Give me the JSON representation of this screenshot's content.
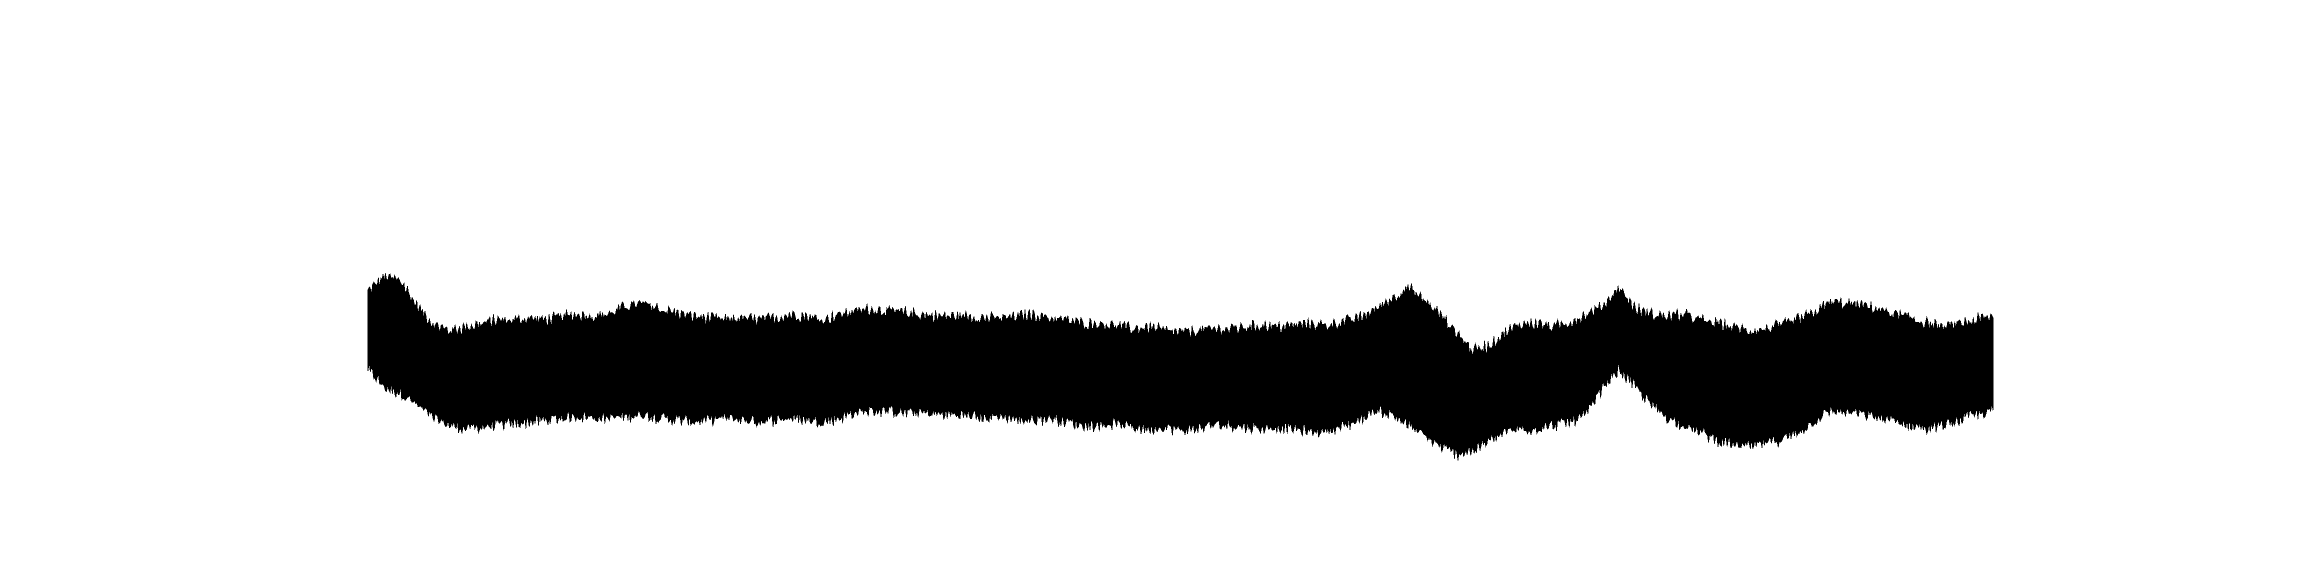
{
  "chart_data": {
    "type": "area",
    "title": "",
    "xlabel": "",
    "ylabel": "",
    "axes_visible": false,
    "grid": false,
    "legend": "none",
    "x_range": [
      0,
      1
    ],
    "y_range": [
      -1,
      1
    ],
    "fill_color": "#000000",
    "background_color": "#ffffff",
    "envelope": {
      "x": [
        0.0,
        0.01,
        0.02,
        0.03,
        0.04,
        0.05,
        0.06,
        0.07,
        0.08,
        0.09,
        0.1,
        0.11,
        0.12,
        0.13,
        0.14,
        0.15,
        0.16,
        0.17,
        0.18,
        0.19,
        0.2,
        0.21,
        0.22,
        0.23,
        0.24,
        0.25,
        0.26,
        0.27,
        0.28,
        0.29,
        0.3,
        0.31,
        0.32,
        0.33,
        0.34,
        0.35,
        0.36,
        0.37,
        0.38,
        0.39,
        0.4,
        0.41,
        0.42,
        0.43,
        0.44,
        0.45,
        0.46,
        0.47,
        0.48,
        0.49,
        0.5,
        0.51,
        0.52,
        0.53,
        0.54,
        0.55,
        0.56,
        0.57,
        0.58,
        0.59,
        0.6,
        0.61,
        0.62,
        0.63,
        0.64,
        0.65,
        0.66,
        0.67,
        0.68,
        0.69,
        0.7,
        0.71,
        0.72,
        0.73,
        0.74,
        0.75,
        0.76,
        0.77,
        0.78,
        0.79,
        0.8,
        0.81,
        0.82,
        0.83,
        0.84,
        0.85,
        0.86,
        0.87,
        0.88,
        0.89,
        0.9,
        0.91,
        0.92,
        0.93,
        0.94,
        0.95,
        0.96,
        0.97,
        0.98,
        0.99,
        1.0
      ],
      "upper": [
        0.38,
        0.46,
        0.44,
        0.3,
        0.2,
        0.16,
        0.18,
        0.2,
        0.22,
        0.22,
        0.23,
        0.22,
        0.24,
        0.25,
        0.24,
        0.26,
        0.3,
        0.31,
        0.28,
        0.26,
        0.24,
        0.23,
        0.22,
        0.23,
        0.22,
        0.23,
        0.25,
        0.24,
        0.22,
        0.25,
        0.27,
        0.28,
        0.27,
        0.26,
        0.25,
        0.24,
        0.24,
        0.24,
        0.23,
        0.23,
        0.24,
        0.25,
        0.23,
        0.22,
        0.2,
        0.2,
        0.19,
        0.17,
        0.18,
        0.16,
        0.15,
        0.16,
        0.17,
        0.17,
        0.18,
        0.19,
        0.18,
        0.19,
        0.2,
        0.19,
        0.21,
        0.23,
        0.28,
        0.34,
        0.4,
        0.33,
        0.25,
        0.15,
        0.05,
        0.08,
        0.15,
        0.2,
        0.2,
        0.18,
        0.21,
        0.25,
        0.3,
        0.4,
        0.28,
        0.25,
        0.24,
        0.25,
        0.22,
        0.2,
        0.18,
        0.16,
        0.17,
        0.19,
        0.22,
        0.26,
        0.32,
        0.31,
        0.3,
        0.28,
        0.25,
        0.23,
        0.2,
        0.18,
        0.2,
        0.22,
        0.24
      ],
      "lower": [
        -0.05,
        -0.15,
        -0.18,
        -0.25,
        -0.32,
        -0.36,
        -0.38,
        -0.37,
        -0.36,
        -0.35,
        -0.34,
        -0.33,
        -0.32,
        -0.31,
        -0.32,
        -0.32,
        -0.31,
        -0.3,
        -0.32,
        -0.33,
        -0.34,
        -0.33,
        -0.32,
        -0.33,
        -0.34,
        -0.33,
        -0.32,
        -0.33,
        -0.34,
        -0.32,
        -0.29,
        -0.28,
        -0.28,
        -0.29,
        -0.29,
        -0.3,
        -0.3,
        -0.31,
        -0.32,
        -0.31,
        -0.33,
        -0.33,
        -0.32,
        -0.34,
        -0.36,
        -0.36,
        -0.35,
        -0.37,
        -0.38,
        -0.37,
        -0.39,
        -0.38,
        -0.36,
        -0.36,
        -0.37,
        -0.38,
        -0.37,
        -0.38,
        -0.4,
        -0.39,
        -0.37,
        -0.33,
        -0.28,
        -0.3,
        -0.36,
        -0.42,
        -0.48,
        -0.52,
        -0.5,
        -0.45,
        -0.4,
        -0.38,
        -0.38,
        -0.36,
        -0.34,
        -0.3,
        -0.15,
        -0.05,
        -0.15,
        -0.25,
        -0.32,
        -0.36,
        -0.4,
        -0.44,
        -0.47,
        -0.48,
        -0.46,
        -0.44,
        -0.4,
        -0.34,
        -0.28,
        -0.29,
        -0.3,
        -0.32,
        -0.34,
        -0.36,
        -0.38,
        -0.36,
        -0.33,
        -0.3,
        -0.28
      ]
    }
  }
}
